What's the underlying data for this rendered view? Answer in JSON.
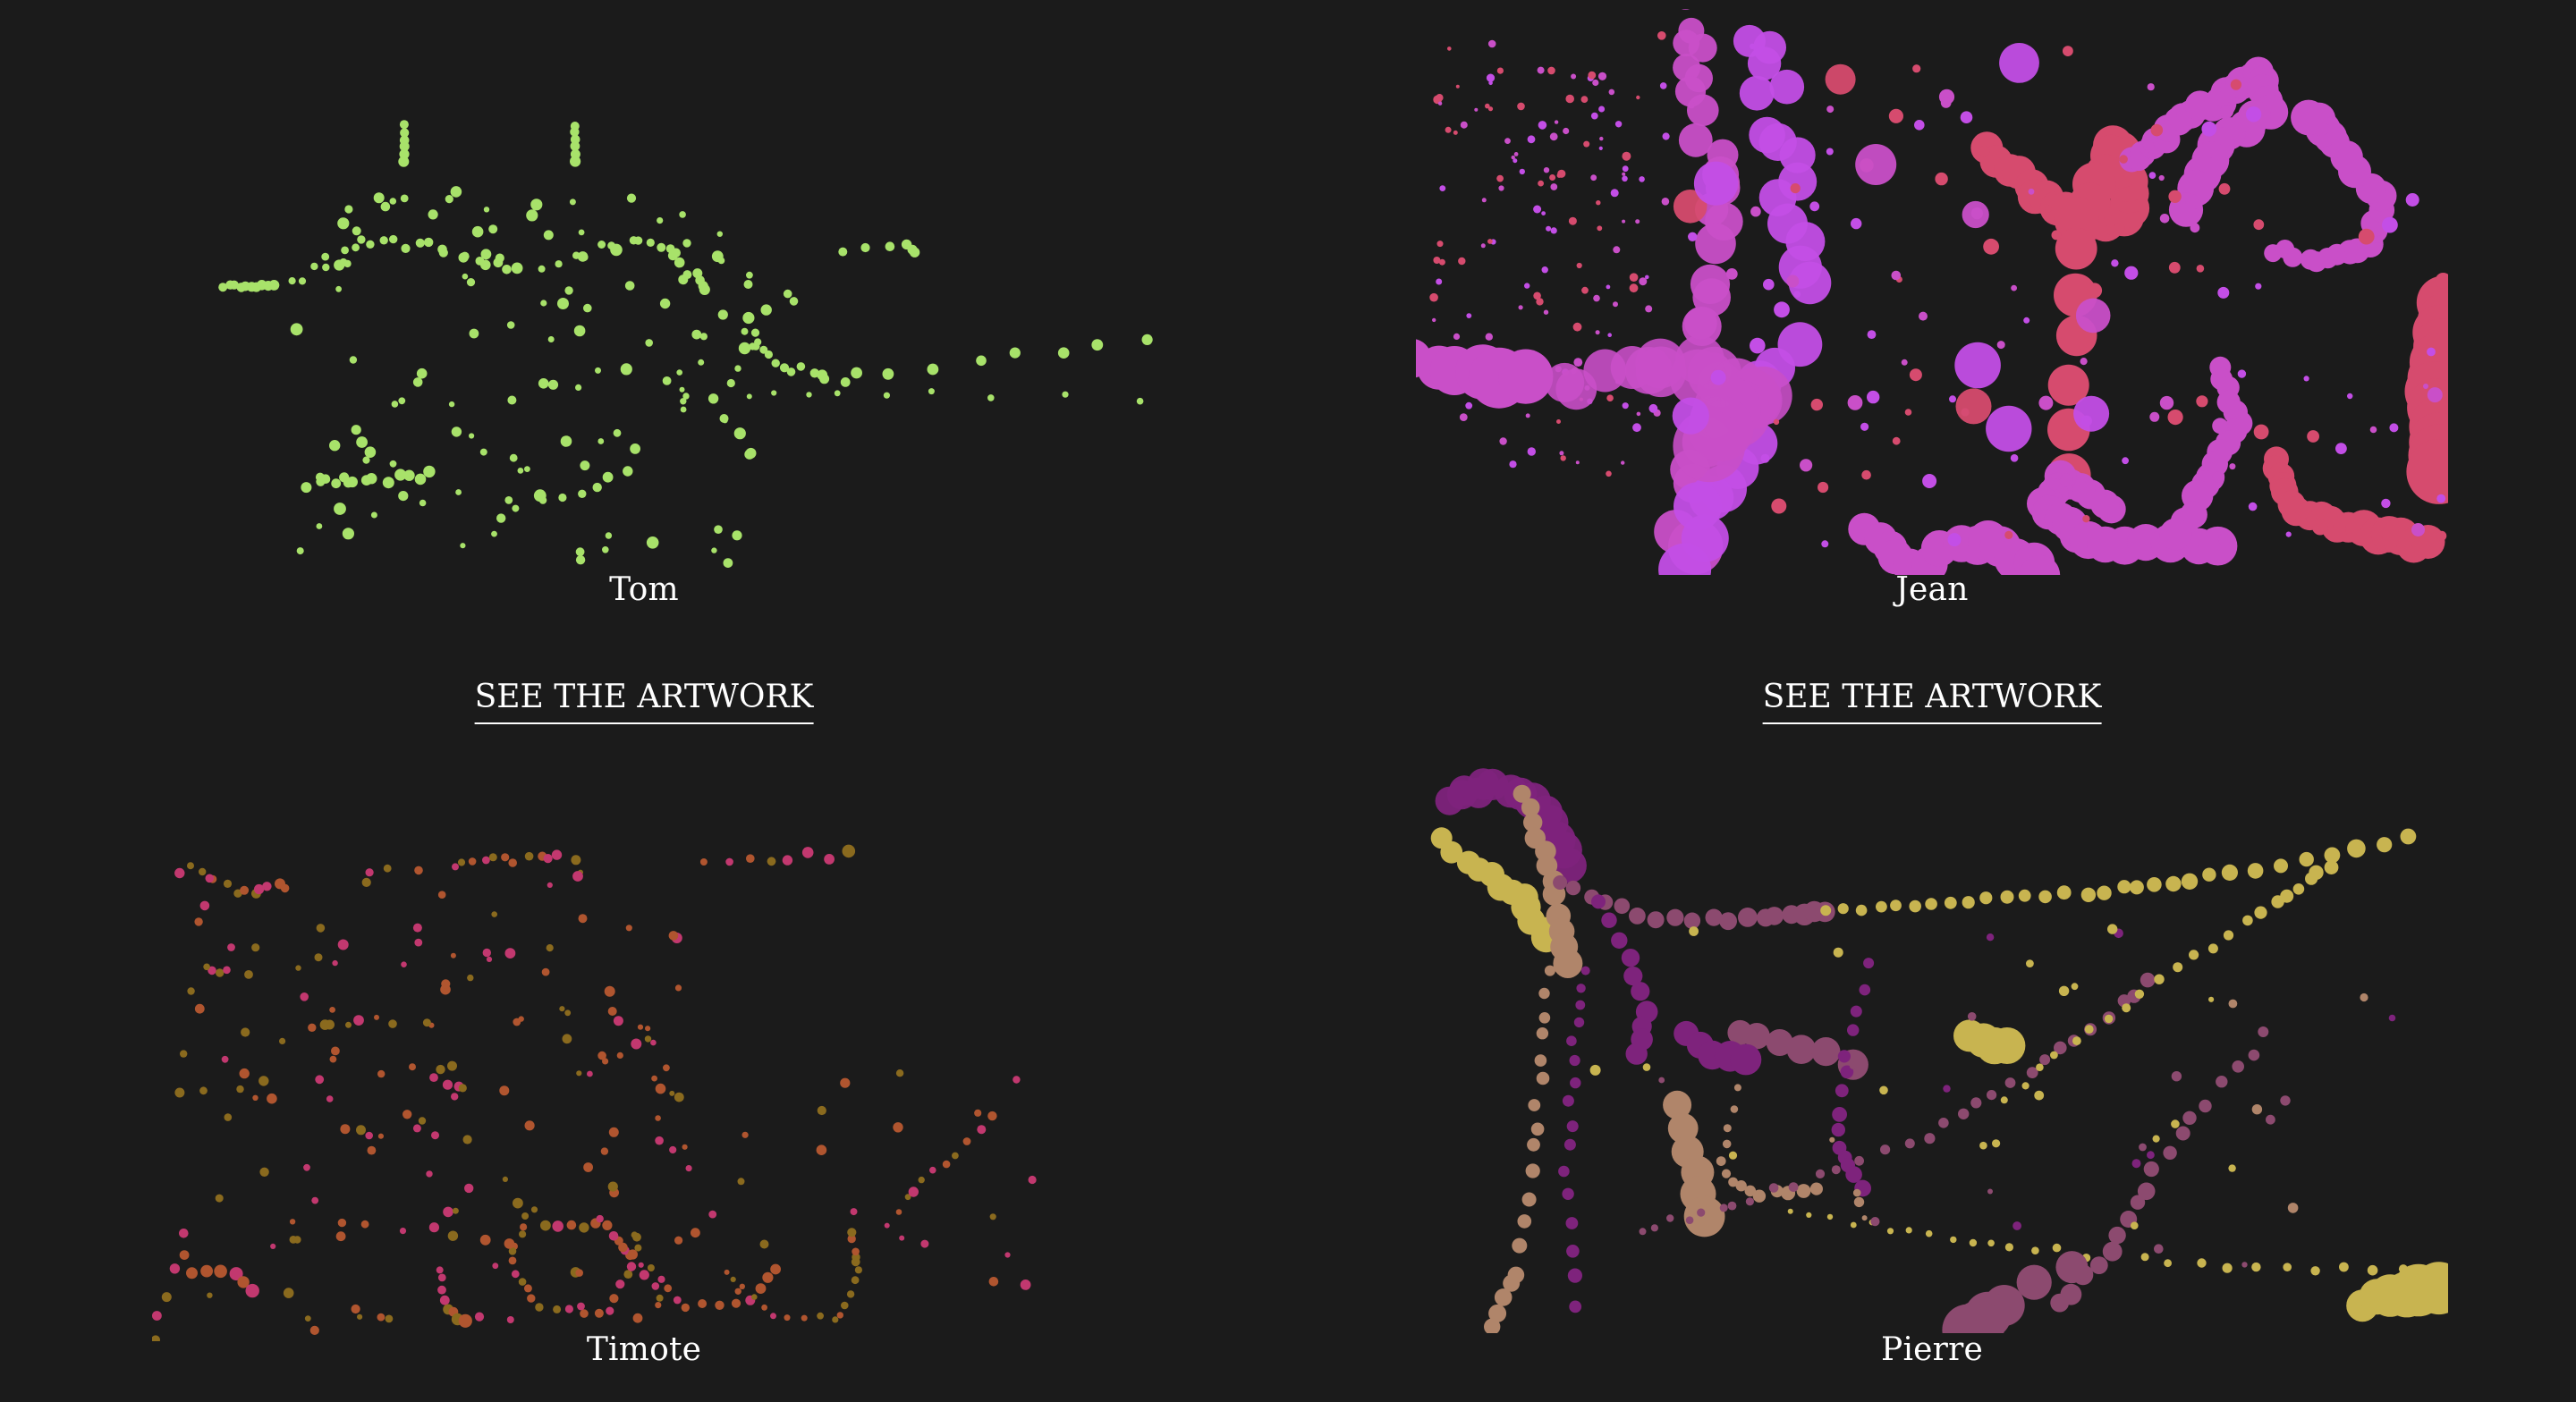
{
  "gallery": {
    "cards": [
      {
        "name": "Tom",
        "cta": "SEE THE ARTWORK",
        "palette": [
          "#a8e26a"
        ]
      },
      {
        "name": "Jean",
        "cta": "SEE THE ARTWORK",
        "palette": [
          "#c94fc8",
          "#d64b6e",
          "#c34ee6"
        ]
      },
      {
        "name": "Timote",
        "palette": [
          "#c2386f",
          "#b0552f",
          "#8a6a1e"
        ]
      },
      {
        "name": "Pierre",
        "palette": [
          "#c8b450",
          "#7e237c",
          "#b0856a",
          "#8c4a6f"
        ]
      }
    ]
  }
}
